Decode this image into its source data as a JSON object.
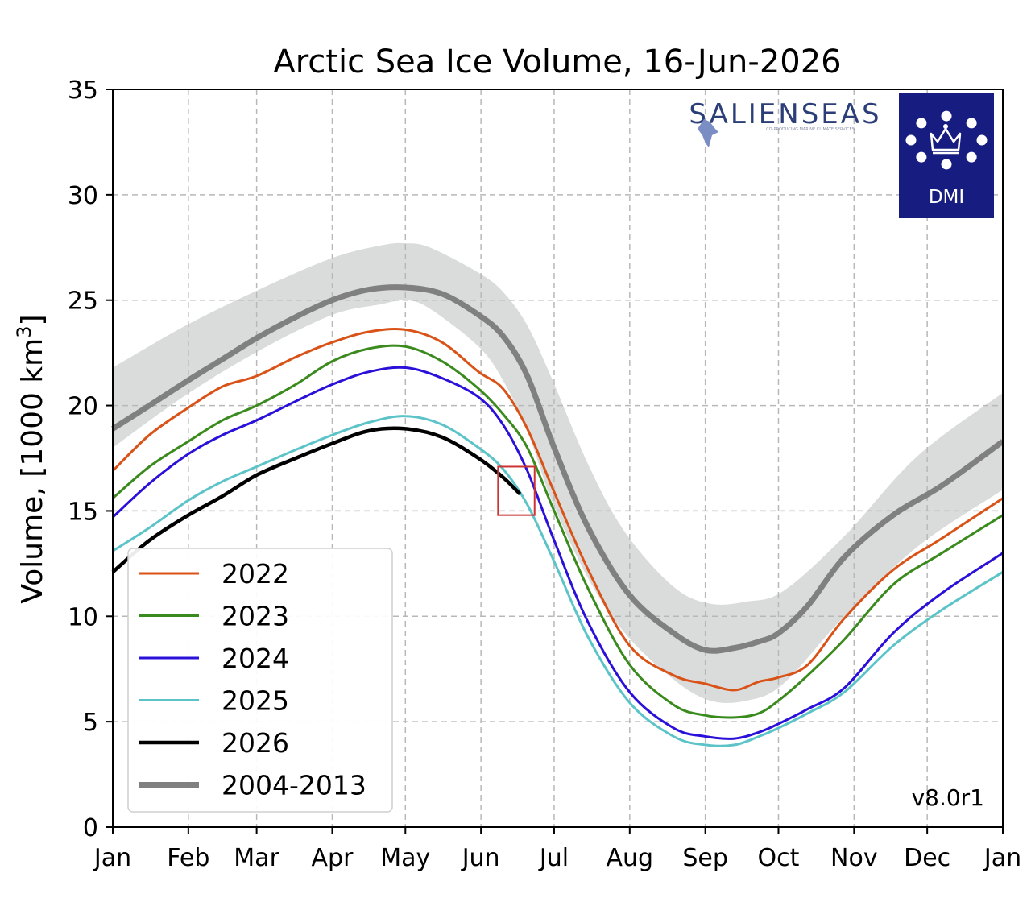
{
  "chart_data": {
    "type": "line",
    "title": "Arctic Sea Ice Volume, 16-Jun-2026",
    "ylabel_main": "Volume, [1000 km",
    "ylabel_sup": "3",
    "ylabel_close": "]",
    "xlabel": "",
    "ylim": [
      0,
      35
    ],
    "xlim": [
      0,
      365
    ],
    "grid": true,
    "legend_position": "lower-left",
    "x_ticks": [
      {
        "label": "Jan",
        "day": 0
      },
      {
        "label": "Feb",
        "day": 31
      },
      {
        "label": "Mar",
        "day": 59
      },
      {
        "label": "Apr",
        "day": 90
      },
      {
        "label": "May",
        "day": 120
      },
      {
        "label": "Jun",
        "day": 151
      },
      {
        "label": "Jul",
        "day": 181
      },
      {
        "label": "Aug",
        "day": 212
      },
      {
        "label": "Sep",
        "day": 243
      },
      {
        "label": "Oct",
        "day": 273
      },
      {
        "label": "Nov",
        "day": 304
      },
      {
        "label": "Dec",
        "day": 334
      },
      {
        "label": "Jan",
        "day": 365
      }
    ],
    "y_ticks": [
      0,
      5,
      10,
      15,
      20,
      25,
      30,
      35
    ],
    "band": {
      "name": "2004-2013 range",
      "color": "#d4d6d6",
      "x": [
        0,
        30,
        60,
        90,
        110,
        120,
        130,
        150,
        160,
        170,
        180,
        195,
        210,
        230,
        245,
        260,
        275,
        300,
        330,
        365
      ],
      "upper": [
        21.8,
        23.8,
        25.5,
        27.0,
        27.6,
        27.7,
        27.5,
        26.3,
        25.4,
        23.8,
        21.3,
        17.2,
        14.0,
        11.4,
        10.6,
        10.7,
        11.2,
        13.8,
        17.6,
        20.6
      ],
      "lower": [
        18.0,
        20.5,
        22.6,
        24.3,
        24.8,
        25.0,
        24.6,
        22.8,
        21.2,
        18.8,
        15.5,
        11.8,
        9.2,
        7.0,
        6.0,
        6.0,
        6.8,
        10.0,
        13.3,
        16.0
      ]
    },
    "series": [
      {
        "name": "2022",
        "color": "#d95318",
        "width": 3,
        "x": [
          0,
          15,
          31,
          45,
          59,
          75,
          90,
          105,
          120,
          135,
          150,
          160,
          170,
          181,
          195,
          212,
          230,
          243,
          255,
          265,
          273,
          285,
          300,
          320,
          340,
          365
        ],
        "values": [
          16.9,
          18.6,
          19.9,
          20.9,
          21.4,
          22.3,
          23.0,
          23.5,
          23.6,
          23.0,
          21.6,
          20.8,
          18.9,
          15.9,
          12.2,
          8.6,
          7.2,
          6.8,
          6.5,
          6.9,
          7.1,
          7.7,
          9.9,
          12.2,
          13.7,
          15.6
        ]
      },
      {
        "name": "2023",
        "color": "#3a8a1e",
        "width": 3,
        "x": [
          0,
          15,
          31,
          45,
          59,
          75,
          90,
          105,
          120,
          135,
          150,
          160,
          170,
          181,
          195,
          212,
          230,
          243,
          255,
          265,
          273,
          285,
          300,
          320,
          340,
          365
        ],
        "values": [
          15.6,
          17.1,
          18.3,
          19.3,
          20.0,
          21.0,
          22.1,
          22.7,
          22.8,
          22.1,
          20.8,
          19.6,
          18.0,
          15.0,
          11.3,
          7.7,
          5.8,
          5.3,
          5.2,
          5.4,
          6.0,
          7.2,
          8.9,
          11.5,
          13.0,
          14.8
        ]
      },
      {
        "name": "2024",
        "color": "#2a10d8",
        "width": 3,
        "x": [
          0,
          15,
          31,
          45,
          59,
          75,
          90,
          105,
          120,
          135,
          150,
          160,
          170,
          181,
          195,
          212,
          230,
          243,
          255,
          265,
          273,
          285,
          300,
          320,
          340,
          365
        ],
        "values": [
          14.7,
          16.3,
          17.7,
          18.6,
          19.3,
          20.2,
          21.0,
          21.6,
          21.8,
          21.3,
          20.4,
          19.1,
          16.9,
          13.6,
          9.7,
          6.4,
          4.7,
          4.3,
          4.2,
          4.5,
          4.9,
          5.6,
          6.6,
          9.2,
          11.1,
          13.0
        ]
      },
      {
        "name": "2025",
        "color": "#5cc4c8",
        "width": 3,
        "x": [
          0,
          15,
          31,
          45,
          59,
          75,
          90,
          105,
          120,
          135,
          150,
          160,
          170,
          181,
          195,
          212,
          230,
          243,
          255,
          265,
          273,
          285,
          300,
          320,
          340,
          365
        ],
        "values": [
          13.1,
          14.2,
          15.5,
          16.4,
          17.1,
          17.9,
          18.6,
          19.2,
          19.5,
          19.1,
          18.0,
          17.0,
          15.3,
          12.6,
          9.0,
          5.9,
          4.3,
          3.9,
          3.9,
          4.3,
          4.7,
          5.4,
          6.4,
          8.6,
          10.3,
          12.1
        ]
      },
      {
        "name": "2026",
        "color": "#000000",
        "width": 4.5,
        "x": [
          0,
          15,
          31,
          45,
          59,
          75,
          90,
          105,
          120,
          135,
          150,
          160,
          167
        ],
        "values": [
          12.1,
          13.6,
          14.8,
          15.7,
          16.7,
          17.5,
          18.2,
          18.8,
          18.9,
          18.5,
          17.5,
          16.6,
          15.8
        ]
      },
      {
        "name": "2004-2013",
        "color": "#808080",
        "width": 7,
        "x": [
          0,
          15,
          31,
          45,
          59,
          75,
          90,
          105,
          120,
          135,
          150,
          160,
          170,
          181,
          195,
          212,
          230,
          243,
          255,
          265,
          273,
          285,
          300,
          320,
          340,
          365
        ],
        "values": [
          18.9,
          20.0,
          21.2,
          22.2,
          23.2,
          24.2,
          25.0,
          25.5,
          25.6,
          25.3,
          24.3,
          23.3,
          21.4,
          18.0,
          14.2,
          11.0,
          9.2,
          8.4,
          8.5,
          8.8,
          9.2,
          10.5,
          12.8,
          14.8,
          16.2,
          18.3
        ]
      }
    ],
    "annotations": {
      "marker_box": {
        "day_from": 158,
        "day_to": 173,
        "vol_from": 14.8,
        "vol_to": 17.1,
        "color": "#cc3333"
      },
      "version": "v8.0r1"
    }
  },
  "logos": {
    "salienseas": "SALIENSEAS",
    "salienseas_tagline": "CO-PRODUCING MARINE CLIMATE SERVICES",
    "dmi": "DMI",
    "dmi_bg": "#161c80"
  }
}
